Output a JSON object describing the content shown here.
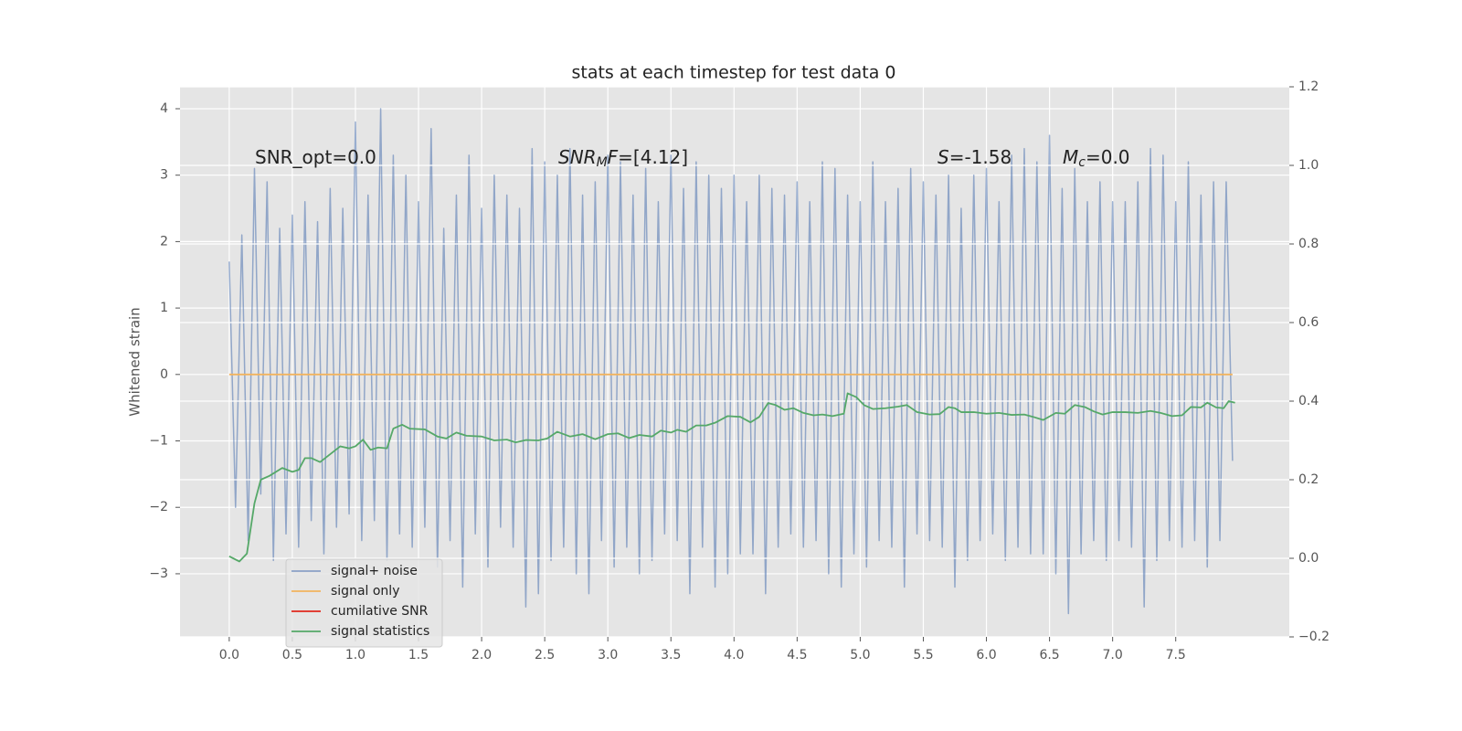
{
  "chart_data": {
    "type": "line",
    "title": "stats at each timestep for test data 0",
    "ylabel": "Whitened strain",
    "annotations": [
      {
        "parts": [
          {
            "text": "SNR_opt=0.0"
          }
        ]
      },
      {
        "parts": [
          {
            "text": "SNR",
            "italic": true
          },
          {
            "text": "M",
            "italic": true,
            "sub": true
          },
          {
            "text": "F",
            "italic": true
          },
          {
            "text": "=[4.12]"
          }
        ]
      },
      {
        "parts": [
          {
            "text": "S",
            "italic": true
          },
          {
            "text": "=-1.58"
          }
        ]
      },
      {
        "parts": [
          {
            "text": "M",
            "italic": true
          },
          {
            "text": "c",
            "italic": true,
            "sub": true
          },
          {
            "text": "=0.0"
          }
        ]
      }
    ],
    "xlim": [
      -0.39,
      8.4
    ],
    "xticks": [
      {
        "value": 0,
        "label": "0.0"
      },
      {
        "value": 0.5,
        "label": "0.5"
      },
      {
        "value": 1,
        "label": "1.0"
      },
      {
        "value": 1.5,
        "label": "1.5"
      },
      {
        "value": 2,
        "label": "2.0"
      },
      {
        "value": 2.5,
        "label": "2.5"
      },
      {
        "value": 3,
        "label": "3.0"
      },
      {
        "value": 3.5,
        "label": "3.5"
      },
      {
        "value": 4,
        "label": "4.0"
      },
      {
        "value": 4.5,
        "label": "4.5"
      },
      {
        "value": 5,
        "label": "5.0"
      },
      {
        "value": 5.5,
        "label": "5.5"
      },
      {
        "value": 6,
        "label": "6.0"
      },
      {
        "value": 6.5,
        "label": "6.5"
      },
      {
        "value": 7,
        "label": "7.0"
      },
      {
        "value": 7.5,
        "label": "7.5"
      }
    ],
    "ylim": [
      -3.95,
      4.33
    ],
    "yticks": [
      {
        "value": -3,
        "label": "−3"
      },
      {
        "value": -2,
        "label": "−2"
      },
      {
        "value": -1,
        "label": "−1"
      },
      0,
      1,
      2,
      3,
      4
    ],
    "y2lim": [
      -0.2,
      1.2
    ],
    "y2ticks": [
      {
        "value": -0.2,
        "label": "−0.2"
      },
      {
        "value": 0,
        "label": "0.0"
      },
      {
        "value": 0.2,
        "label": "0.2"
      },
      {
        "value": 0.4,
        "label": "0.4"
      },
      {
        "value": 0.6,
        "label": "0.6"
      },
      {
        "value": 0.8,
        "label": "0.8"
      },
      {
        "value": 1.0,
        "label": "1.0"
      },
      {
        "value": 1.2,
        "label": "1.2"
      }
    ],
    "grid": true,
    "legend": "lower left",
    "series": [
      {
        "name": "signal+ noise",
        "color": "#4c72b0",
        "x": [
          0,
          0.05,
          0.1,
          0.15,
          0.2,
          0.25,
          0.3,
          0.35,
          0.4,
          0.45,
          0.5,
          0.55,
          0.6,
          0.65,
          0.7,
          0.75,
          0.8,
          0.85,
          0.9,
          0.95,
          1,
          1.05,
          1.1,
          1.15,
          1.2,
          1.25,
          1.3,
          1.35,
          1.4,
          1.45,
          1.5,
          1.55,
          1.6,
          1.65,
          1.7,
          1.75,
          1.8,
          1.85,
          1.9,
          1.95,
          2,
          2.05,
          2.1,
          2.15,
          2.2,
          2.25,
          2.3,
          2.35,
          2.4,
          2.45,
          2.5,
          2.55,
          2.6,
          2.65,
          2.7,
          2.75,
          2.8,
          2.85,
          2.9,
          2.95,
          3,
          3.05,
          3.1,
          3.15,
          3.2,
          3.25,
          3.3,
          3.35,
          3.4,
          3.45,
          3.5,
          3.55,
          3.6,
          3.65,
          3.7,
          3.75,
          3.8,
          3.85,
          3.9,
          3.95,
          4,
          4.05,
          4.1,
          4.15,
          4.2,
          4.25,
          4.3,
          4.35,
          4.4,
          4.45,
          4.5,
          4.55,
          4.6,
          4.65,
          4.7,
          4.75,
          4.8,
          4.85,
          4.9,
          4.95,
          5,
          5.05,
          5.1,
          5.15,
          5.2,
          5.25,
          5.3,
          5.35,
          5.4,
          5.45,
          5.5,
          5.55,
          5.6,
          5.65,
          5.7,
          5.75,
          5.8,
          5.85,
          5.9,
          5.95,
          6,
          6.05,
          6.1,
          6.15,
          6.2,
          6.25,
          6.3,
          6.35,
          6.4,
          6.45,
          6.5,
          6.55,
          6.6,
          6.65,
          6.7,
          6.75,
          6.8,
          6.85,
          6.9,
          6.95,
          7,
          7.05,
          7.1,
          7.15,
          7.2,
          7.25,
          7.3,
          7.35,
          7.4,
          7.45,
          7.5,
          7.55,
          7.6,
          7.65,
          7.7,
          7.75,
          7.8,
          7.85,
          7.9,
          7.95
        ],
        "values": [
          1.7,
          -2.0,
          2.1,
          -2.5,
          3.1,
          -1.8,
          2.9,
          -2.8,
          2.2,
          -2.4,
          2.4,
          -2.6,
          2.6,
          -2.2,
          2.3,
          -2.7,
          2.8,
          -2.3,
          2.5,
          -2.1,
          3.8,
          -2.5,
          2.7,
          -2.2,
          4.0,
          -2.8,
          3.3,
          -2.4,
          3.0,
          -2.6,
          2.6,
          -2.3,
          3.7,
          -2.9,
          2.2,
          -2.5,
          2.7,
          -3.2,
          3.3,
          -2.4,
          2.5,
          -2.9,
          3.0,
          -2.3,
          2.7,
          -2.6,
          2.5,
          -3.5,
          3.4,
          -3.3,
          3.2,
          -2.8,
          3.0,
          -2.6,
          3.4,
          -3.0,
          2.7,
          -3.3,
          2.9,
          -2.5,
          3.3,
          -2.9,
          3.2,
          -2.6,
          2.7,
          -3.0,
          3.1,
          -2.8,
          2.6,
          -2.4,
          3.3,
          -2.5,
          2.8,
          -3.3,
          3.2,
          -2.6,
          3.0,
          -3.2,
          2.8,
          -3.0,
          3.0,
          -2.7,
          2.6,
          -2.7,
          3.0,
          -3.3,
          2.8,
          -2.6,
          2.7,
          -2.4,
          2.9,
          -2.6,
          2.6,
          -2.5,
          3.2,
          -3.0,
          3.1,
          -3.2,
          2.7,
          -2.7,
          2.6,
          -2.9,
          3.2,
          -2.5,
          2.6,
          -2.6,
          2.8,
          -3.2,
          3.1,
          -2.4,
          2.9,
          -2.5,
          2.7,
          -2.6,
          3.0,
          -3.2,
          2.5,
          -2.8,
          3.0,
          -2.5,
          3.1,
          -2.4,
          2.6,
          -2.8,
          3.3,
          -2.6,
          3.4,
          -2.7,
          3.2,
          -2.7,
          3.6,
          -3.0,
          2.8,
          -3.6,
          3.1,
          -2.7,
          2.6,
          -2.5,
          2.9,
          -2.8,
          2.6,
          -2.5,
          2.6,
          -2.6,
          2.9,
          -3.5,
          3.4,
          -2.8,
          3.3,
          -2.5,
          2.6,
          -2.6,
          3.2,
          -2.5,
          2.7,
          -2.9,
          2.9,
          -2.5,
          2.9,
          -1.3
        ]
      },
      {
        "name": "signal only",
        "color": "#f2b35e",
        "x": [
          0,
          7.95
        ],
        "values": [
          0,
          0
        ]
      },
      {
        "name": "cumilative SNR",
        "color": "#e0281e",
        "x": [],
        "values": []
      },
      {
        "name": "signal statistics",
        "color": "#55a868",
        "axis": "y2",
        "x": [
          0,
          0.08,
          0.14,
          0.2,
          0.25,
          0.32,
          0.42,
          0.5,
          0.55,
          0.6,
          0.65,
          0.72,
          0.8,
          0.88,
          0.95,
          1,
          1.06,
          1.12,
          1.18,
          1.25,
          1.3,
          1.37,
          1.43,
          1.55,
          1.65,
          1.72,
          1.8,
          1.88,
          2,
          2.1,
          2.2,
          2.27,
          2.35,
          2.45,
          2.52,
          2.6,
          2.7,
          2.8,
          2.9,
          3,
          3.08,
          3.17,
          3.25,
          3.35,
          3.42,
          3.5,
          3.55,
          3.62,
          3.7,
          3.78,
          3.85,
          3.95,
          4.05,
          4.13,
          4.2,
          4.27,
          4.33,
          4.4,
          4.47,
          4.55,
          4.63,
          4.7,
          4.78,
          4.87,
          4.9,
          4.97,
          5.03,
          5.1,
          5.2,
          5.3,
          5.37,
          5.45,
          5.55,
          5.63,
          5.7,
          5.75,
          5.8,
          5.9,
          6,
          6.1,
          6.2,
          6.3,
          6.37,
          6.45,
          6.55,
          6.62,
          6.7,
          6.78,
          6.85,
          6.92,
          7,
          7.1,
          7.2,
          7.3,
          7.38,
          7.47,
          7.55,
          7.62,
          7.7,
          7.75,
          7.82,
          7.88,
          7.92,
          7.97
        ],
        "values": [
          0.005,
          -0.008,
          0.012,
          0.14,
          0.2,
          0.21,
          0.23,
          0.22,
          0.225,
          0.255,
          0.255,
          0.245,
          0.265,
          0.285,
          0.28,
          0.285,
          0.302,
          0.276,
          0.282,
          0.28,
          0.33,
          0.34,
          0.33,
          0.328,
          0.31,
          0.305,
          0.32,
          0.312,
          0.31,
          0.3,
          0.302,
          0.295,
          0.301,
          0.3,
          0.305,
          0.322,
          0.31,
          0.316,
          0.303,
          0.316,
          0.318,
          0.306,
          0.314,
          0.31,
          0.325,
          0.32,
          0.327,
          0.322,
          0.338,
          0.338,
          0.345,
          0.362,
          0.36,
          0.346,
          0.36,
          0.395,
          0.39,
          0.378,
          0.382,
          0.37,
          0.364,
          0.366,
          0.362,
          0.368,
          0.42,
          0.41,
          0.39,
          0.38,
          0.382,
          0.386,
          0.39,
          0.372,
          0.366,
          0.367,
          0.385,
          0.382,
          0.372,
          0.372,
          0.368,
          0.37,
          0.365,
          0.366,
          0.36,
          0.352,
          0.37,
          0.368,
          0.39,
          0.385,
          0.374,
          0.366,
          0.372,
          0.372,
          0.37,
          0.375,
          0.37,
          0.362,
          0.364,
          0.385,
          0.384,
          0.396,
          0.384,
          0.382,
          0.4,
          0.396
        ]
      }
    ]
  }
}
